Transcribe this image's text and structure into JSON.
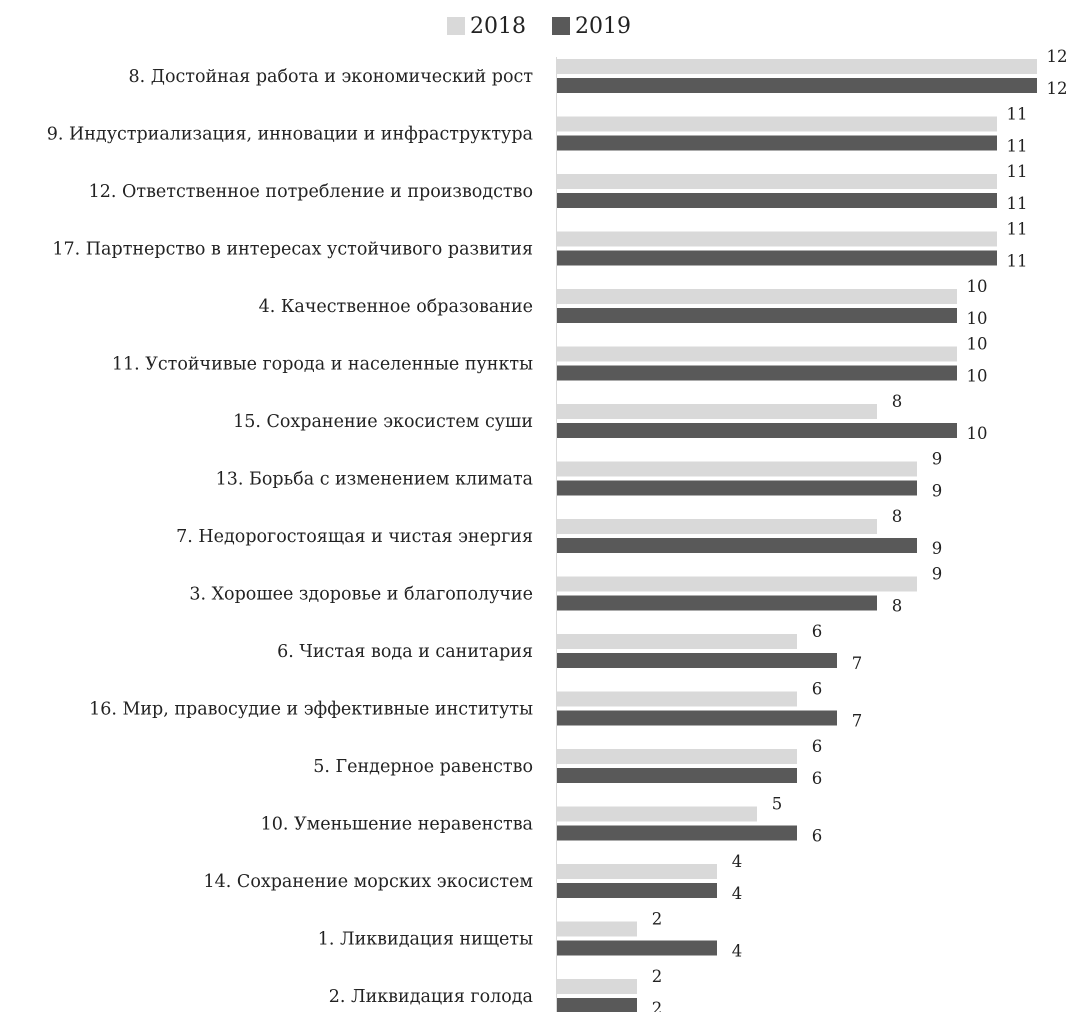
{
  "chart_data": {
    "type": "bar",
    "orientation": "horizontal",
    "title": "",
    "xlabel": "",
    "ylabel": "",
    "legend_position": "top",
    "grid": false,
    "xlim": [
      0,
      12
    ],
    "categories": [
      "8. Достойная работа и экономический рост",
      "9. Индустриализация, инновации и инфраструктура",
      "12. Ответственное потребление и производство",
      "17. Партнерство в интересах устойчивого развития",
      "4. Качественное образование",
      "11. Устойчивые города и населенные пункты",
      "15. Сохранение экосистем суши",
      "13. Борьба с изменением климата",
      "7. Недорогостоящая и чистая энергия",
      "3. Хорошее здоровье и благополучие",
      "6. Чистая вода и санитария",
      "16. Мир, правосудие и эффективные институты",
      "5. Гендерное равенство",
      "10. Уменьшение неравенства",
      "14. Сохранение морских экосистем",
      "1. Ликвидация нищеты",
      "2. Ликвидация голода"
    ],
    "series": [
      {
        "name": "2018",
        "color": "#d9d9d9",
        "values": [
          12,
          11,
          11,
          11,
          10,
          10,
          8,
          9,
          8,
          9,
          6,
          6,
          6,
          5,
          4,
          2,
          2
        ]
      },
      {
        "name": "2019",
        "color": "#595959",
        "values": [
          12,
          11,
          11,
          11,
          10,
          10,
          10,
          9,
          9,
          8,
          7,
          7,
          6,
          6,
          4,
          4,
          2
        ]
      }
    ]
  }
}
